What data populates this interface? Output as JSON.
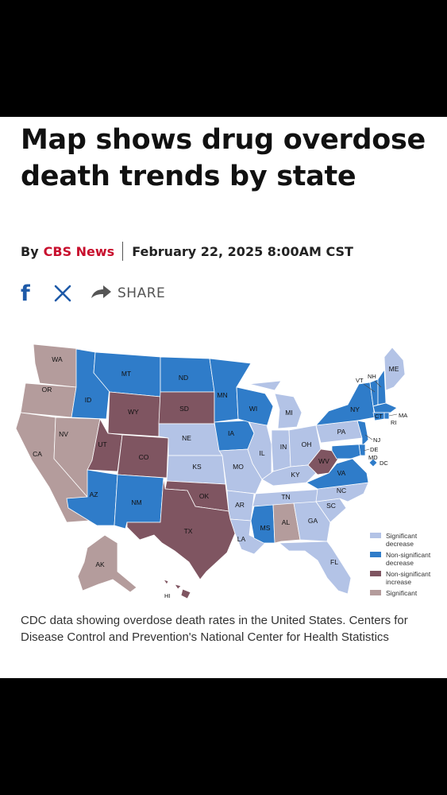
{
  "article": {
    "headline": "Map shows drug overdose death trends by state",
    "byline_prefix": "By",
    "source": "CBS News",
    "date": "February 22, 2025 8:00AM CST",
    "share_label": "SHARE",
    "caption": "CDC data showing overdose death rates in the United States. Centers for Disease Control and Prevention's National Center for Health Statistics"
  },
  "share_icons": [
    "facebook-icon",
    "x-icon",
    "share-arrow-icon"
  ],
  "map": {
    "colors": {
      "significant_decrease": "#b3c3e6",
      "non_significant_decrease": "#2f7cc9",
      "non_significant_increase": "#7f5561",
      "significant_increase": "#b49c9c"
    },
    "legend": [
      {
        "key": "significant_decrease",
        "label_lines": [
          "Significant",
          "decrease"
        ]
      },
      {
        "key": "non_significant_decrease",
        "label_lines": [
          "Non-significant",
          "decrease"
        ]
      },
      {
        "key": "non_significant_increase",
        "label_lines": [
          "Non-significant",
          "increase"
        ]
      },
      {
        "key": "significant_increase",
        "label_lines": [
          "Significant"
        ]
      }
    ],
    "states": [
      {
        "abbr": "WA",
        "category": "significant_increase"
      },
      {
        "abbr": "OR",
        "category": "significant_increase"
      },
      {
        "abbr": "CA",
        "category": "significant_increase"
      },
      {
        "abbr": "NV",
        "category": "significant_increase"
      },
      {
        "abbr": "ID",
        "category": "non_significant_decrease"
      },
      {
        "abbr": "MT",
        "category": "non_significant_decrease"
      },
      {
        "abbr": "WY",
        "category": "non_significant_increase"
      },
      {
        "abbr": "UT",
        "category": "non_significant_increase"
      },
      {
        "abbr": "CO",
        "category": "non_significant_increase"
      },
      {
        "abbr": "AZ",
        "category": "non_significant_decrease"
      },
      {
        "abbr": "NM",
        "category": "non_significant_decrease"
      },
      {
        "abbr": "ND",
        "category": "non_significant_decrease"
      },
      {
        "abbr": "SD",
        "category": "non_significant_increase"
      },
      {
        "abbr": "NE",
        "category": "significant_decrease"
      },
      {
        "abbr": "KS",
        "category": "significant_decrease"
      },
      {
        "abbr": "OK",
        "category": "non_significant_increase"
      },
      {
        "abbr": "TX",
        "category": "non_significant_increase"
      },
      {
        "abbr": "MN",
        "category": "non_significant_decrease"
      },
      {
        "abbr": "IA",
        "category": "non_significant_decrease"
      },
      {
        "abbr": "MO",
        "category": "significant_decrease"
      },
      {
        "abbr": "AR",
        "category": "significant_decrease"
      },
      {
        "abbr": "LA",
        "category": "significant_decrease"
      },
      {
        "abbr": "WI",
        "category": "non_significant_decrease"
      },
      {
        "abbr": "IL",
        "category": "significant_decrease"
      },
      {
        "abbr": "MI",
        "category": "significant_decrease"
      },
      {
        "abbr": "IN",
        "category": "significant_decrease"
      },
      {
        "abbr": "OH",
        "category": "significant_decrease"
      },
      {
        "abbr": "KY",
        "category": "significant_decrease"
      },
      {
        "abbr": "TN",
        "category": "significant_decrease"
      },
      {
        "abbr": "MS",
        "category": "non_significant_decrease"
      },
      {
        "abbr": "AL",
        "category": "significant_increase"
      },
      {
        "abbr": "GA",
        "category": "significant_decrease"
      },
      {
        "abbr": "FL",
        "category": "significant_decrease"
      },
      {
        "abbr": "SC",
        "category": "significant_decrease"
      },
      {
        "abbr": "NC",
        "category": "significant_decrease"
      },
      {
        "abbr": "VA",
        "category": "non_significant_decrease"
      },
      {
        "abbr": "WV",
        "category": "non_significant_increase"
      },
      {
        "abbr": "PA",
        "category": "significant_decrease"
      },
      {
        "abbr": "NY",
        "category": "non_significant_decrease"
      },
      {
        "abbr": "VT",
        "category": "non_significant_decrease"
      },
      {
        "abbr": "NH",
        "category": "non_significant_decrease"
      },
      {
        "abbr": "ME",
        "category": "significant_decrease"
      },
      {
        "abbr": "MA",
        "category": "non_significant_decrease"
      },
      {
        "abbr": "CT",
        "category": "non_significant_decrease"
      },
      {
        "abbr": "RI",
        "category": "non_significant_decrease"
      },
      {
        "abbr": "NJ",
        "category": "non_significant_decrease"
      },
      {
        "abbr": "DE",
        "category": "non_significant_decrease"
      },
      {
        "abbr": "MD",
        "category": "non_significant_decrease"
      },
      {
        "abbr": "DC",
        "category": "non_significant_decrease"
      },
      {
        "abbr": "AK",
        "category": "significant_increase"
      },
      {
        "abbr": "HI",
        "category": "non_significant_increase"
      }
    ]
  }
}
